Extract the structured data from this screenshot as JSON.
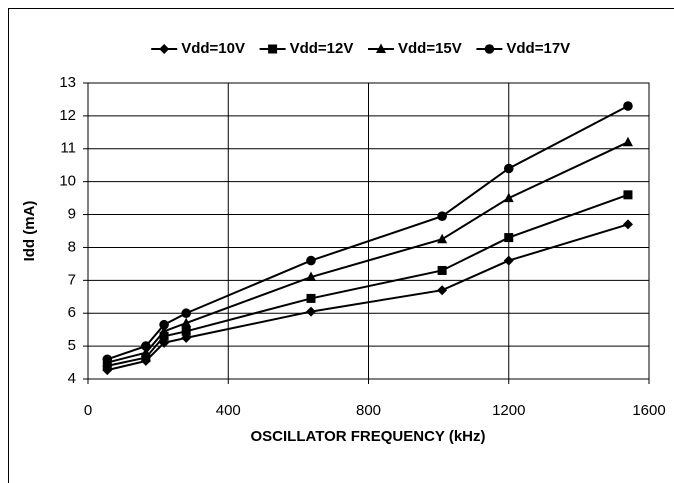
{
  "chart_data": {
    "type": "line",
    "x_label": "OSCILLATOR FREQUENCY (kHz)",
    "y_label": "Idd (mA)",
    "x": [
      55,
      165,
      217,
      280,
      636,
      1010,
      1200,
      1540
    ],
    "series": [
      {
        "name": "Vdd=10V",
        "color": "#000000",
        "marker": "diamond",
        "values": [
          4.27,
          4.55,
          5.1,
          5.25,
          6.05,
          6.7,
          7.6,
          8.7
        ]
      },
      {
        "name": "Vdd=12V",
        "color": "#000000",
        "marker": "square",
        "values": [
          4.4,
          4.65,
          5.3,
          5.45,
          6.45,
          7.3,
          8.3,
          9.6
        ]
      },
      {
        "name": "Vdd=15V",
        "color": "#000000",
        "marker": "triangle",
        "values": [
          4.5,
          4.8,
          5.45,
          5.7,
          7.1,
          8.25,
          9.5,
          11.2
        ]
      },
      {
        "name": "Vdd=17V",
        "color": "#000000",
        "marker": "circle",
        "values": [
          4.6,
          5.0,
          5.65,
          6.0,
          7.6,
          8.95,
          10.4,
          12.3
        ]
      }
    ],
    "xlim": [
      0,
      1600
    ],
    "xticks": [
      0,
      400,
      800,
      1200,
      1600
    ],
    "ylim": [
      4,
      13
    ],
    "yticks": [
      4,
      5,
      6,
      7,
      8,
      9,
      10,
      11,
      12,
      13
    ],
    "grid": true,
    "legend": "top"
  }
}
